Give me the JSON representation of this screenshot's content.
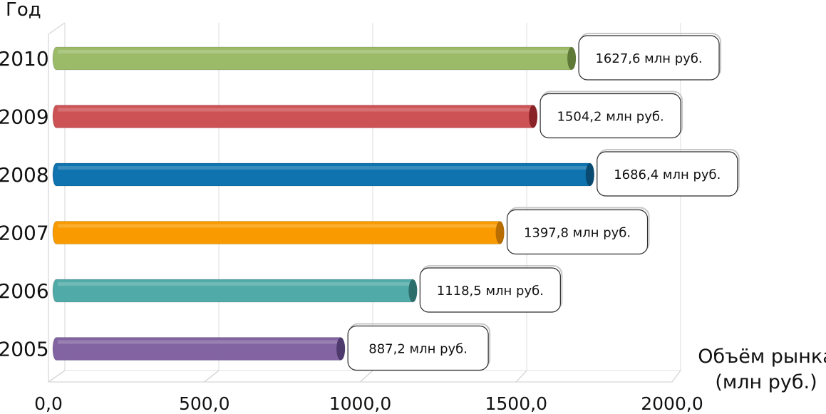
{
  "chart_data": {
    "type": "bar",
    "orientation": "horizontal",
    "ylabel": "Год",
    "xlabel_lines": [
      "Объём рынка",
      "(млн руб.)"
    ],
    "xlim": [
      0,
      2000
    ],
    "x_ticks": [
      "0,0",
      "500,0",
      "1000,0",
      "1500,0",
      "2000,0"
    ],
    "x_tick_values": [
      0,
      500,
      1000,
      1500,
      2000
    ],
    "grid": true,
    "categories": [
      "2010",
      "2009",
      "2008",
      "2007",
      "2006",
      "2005"
    ],
    "values": [
      1627.6,
      1504.2,
      1686.4,
      1397.8,
      1118.5,
      887.2
    ],
    "data_labels": [
      "1627,6 млн руб.",
      "1504,2 млн руб.",
      "1686,4 млн руб.",
      "1397,8 млн руб.",
      "1118,5 млн руб.",
      "887,2 млн руб."
    ],
    "colors": [
      "#9bbb59",
      "#c0504d",
      "#1f77b4",
      "#f79e1b",
      "#4bacc6",
      "#8064a2"
    ],
    "bar_colors": [
      "#9bbb69",
      "#cd5255",
      "#0e73ae",
      "#f99b00",
      "#50aba8",
      "#8364a2"
    ],
    "bar_end_colors": [
      "#5e7a36",
      "#8a2328",
      "#0a4a70",
      "#b86d00",
      "#2d6e6b",
      "#4f3a6e"
    ]
  }
}
